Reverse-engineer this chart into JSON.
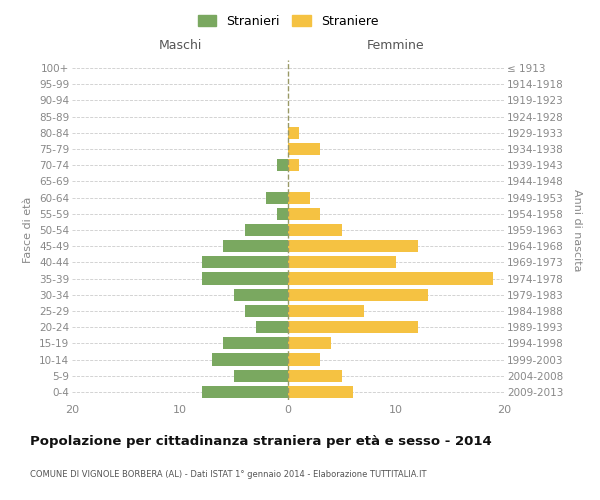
{
  "age_groups": [
    "0-4",
    "5-9",
    "10-14",
    "15-19",
    "20-24",
    "25-29",
    "30-34",
    "35-39",
    "40-44",
    "45-49",
    "50-54",
    "55-59",
    "60-64",
    "65-69",
    "70-74",
    "75-79",
    "80-84",
    "85-89",
    "90-94",
    "95-99",
    "100+"
  ],
  "birth_years": [
    "2009-2013",
    "2004-2008",
    "1999-2003",
    "1994-1998",
    "1989-1993",
    "1984-1988",
    "1979-1983",
    "1974-1978",
    "1969-1973",
    "1964-1968",
    "1959-1963",
    "1954-1958",
    "1949-1953",
    "1944-1948",
    "1939-1943",
    "1934-1938",
    "1929-1933",
    "1924-1928",
    "1919-1923",
    "1914-1918",
    "≤ 1913"
  ],
  "maschi": [
    8,
    5,
    7,
    6,
    3,
    4,
    5,
    8,
    8,
    6,
    4,
    1,
    2,
    0,
    1,
    0,
    0,
    0,
    0,
    0,
    0
  ],
  "femmine": [
    6,
    5,
    3,
    4,
    12,
    7,
    13,
    19,
    10,
    12,
    5,
    3,
    2,
    0,
    1,
    3,
    1,
    0,
    0,
    0,
    0
  ],
  "color_maschi": "#7aa860",
  "color_femmine": "#f5c242",
  "title": "Popolazione per cittadinanza straniera per età e sesso - 2014",
  "subtitle": "COMUNE DI VIGNOLE BORBERA (AL) - Dati ISTAT 1° gennaio 2014 - Elaborazione TUTTITALIA.IT",
  "xlabel_left": "Maschi",
  "xlabel_right": "Femmine",
  "ylabel_left": "Fasce di età",
  "ylabel_right": "Anni di nascita",
  "legend_maschi": "Stranieri",
  "legend_femmine": "Straniere",
  "xlim": 20,
  "background_color": "#ffffff",
  "grid_color": "#cccccc"
}
